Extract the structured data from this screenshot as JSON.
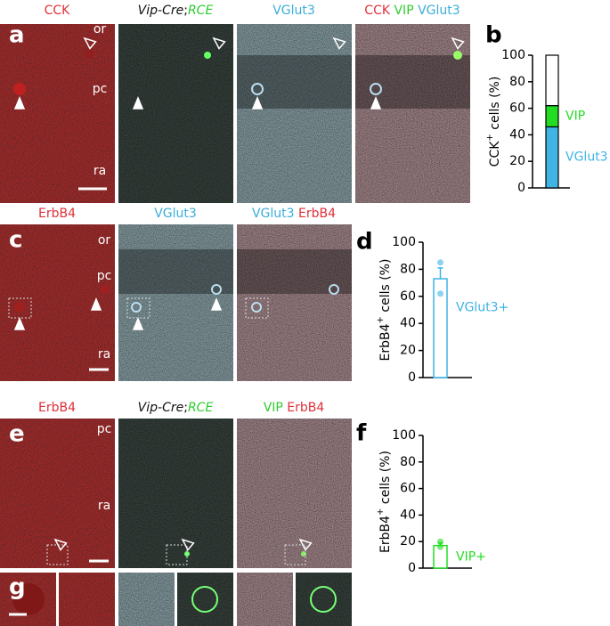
{
  "figure": {
    "rows": [
      {
        "letter": "a",
        "headers": [
          [
            {
              "text": "CCK",
              "color": "#e0303a"
            }
          ],
          [
            {
              "text": "Vip-Cre",
              "color": "#111111",
              "italic": true
            },
            {
              "text": ";",
              "color": "#111111"
            },
            {
              "text": "RCE",
              "color": "#2ecc2e",
              "italic": true
            }
          ],
          [
            {
              "text": "VGlut3",
              "color": "#3aaed8"
            }
          ],
          [
            {
              "text": "CCK",
              "color": "#e0303a"
            },
            {
              "text": " VIP",
              "color": "#2ecc2e"
            },
            {
              "text": " VGlut3",
              "color": "#3aaed8"
            }
          ]
        ],
        "layers": [
          "or",
          "pc",
          "ra"
        ]
      },
      {
        "letter": "c",
        "headers": [
          [
            {
              "text": "ErbB4",
              "color": "#e0303a"
            }
          ],
          [
            {
              "text": "VGlut3",
              "color": "#3aaed8"
            }
          ],
          [
            {
              "text": "VGlut3",
              "color": "#3aaed8"
            },
            {
              "text": " ErbB4",
              "color": "#e0303a"
            }
          ]
        ],
        "layers": [
          "or",
          "pc",
          "ra"
        ]
      },
      {
        "letter": "e",
        "headers": [
          [
            {
              "text": "ErbB4",
              "color": "#e0303a"
            }
          ],
          [
            {
              "text": "Vip-Cre",
              "color": "#111111",
              "italic": true
            },
            {
              "text": ";",
              "color": "#111111"
            },
            {
              "text": "RCE",
              "color": "#2ecc2e",
              "italic": true
            }
          ],
          [
            {
              "text": "VIP",
              "color": "#2ecc2e"
            },
            {
              "text": " ErbB4",
              "color": "#e0303a"
            }
          ]
        ],
        "layers": [
          "pc",
          "ra"
        ]
      },
      {
        "letter": "g",
        "headers": [],
        "layers": []
      }
    ]
  },
  "chart_data": [
    {
      "type": "stacked-bar",
      "letter": "b",
      "y_label": {
        "main": "CCK",
        "sup": "+",
        "rest": " cells (%)"
      },
      "series": [
        {
          "name": "VGlut3",
          "color": "#3fb4e5",
          "values": [
            46
          ]
        },
        {
          "name": "VIP",
          "color": "#22dd22",
          "values": [
            16
          ]
        },
        {
          "color": "#ffffff",
          "values": [
            38
          ]
        }
      ],
      "ylim": [
        0,
        100
      ],
      "yticks": [
        0,
        20,
        40,
        60,
        80,
        100
      ]
    },
    {
      "type": "bar",
      "letter": "d",
      "y_label": {
        "main": "ErbB4",
        "sup": "+",
        "rest": " cells (%)"
      },
      "series": [
        {
          "name": "VGlut3+",
          "color": "#3fb4e5",
          "values": [
            73
          ],
          "errors": [
            8
          ],
          "points": [
            85,
            62
          ]
        }
      ],
      "ylim": [
        0,
        100
      ],
      "yticks": [
        0,
        20,
        40,
        60,
        80,
        100
      ]
    },
    {
      "type": "bar",
      "letter": "f",
      "y_label": {
        "main": "ErbB4",
        "sup": "+",
        "rest": " cells (%)"
      },
      "series": [
        {
          "name": "VIP+",
          "color": "#22dd22",
          "values": [
            17
          ],
          "errors": [
            2
          ],
          "points": [
            20,
            16
          ]
        }
      ],
      "ylim": [
        0,
        100
      ],
      "yticks": [
        0,
        20,
        40,
        60,
        80,
        100
      ]
    }
  ]
}
